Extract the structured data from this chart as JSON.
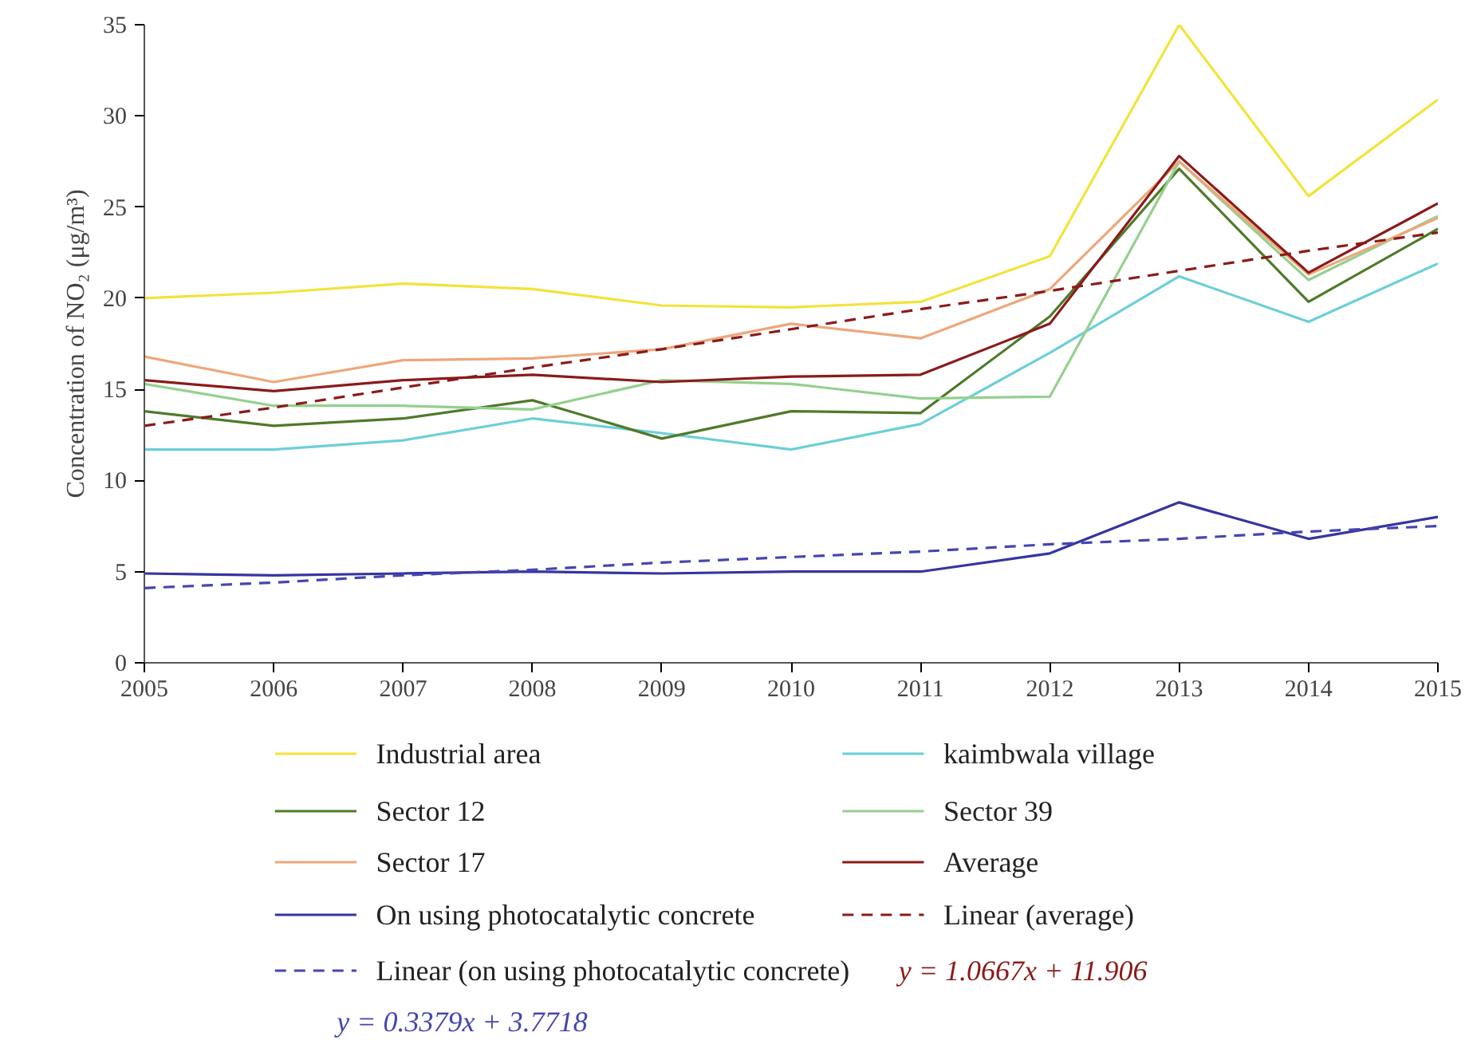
{
  "chart_data": {
    "type": "line",
    "ylabel": "Concentration of NO₂ (μg/m³)",
    "x": [
      2005,
      2006,
      2007,
      2008,
      2009,
      2010,
      2011,
      2012,
      2013,
      2014,
      2015
    ],
    "xlim": [
      2005,
      2015
    ],
    "xticks": [
      2005,
      2006,
      2007,
      2008,
      2009,
      2010,
      2011,
      2012,
      2013,
      2014,
      2015
    ],
    "ylim": [
      0,
      35
    ],
    "yticks": [
      0,
      5,
      10,
      15,
      20,
      25,
      30,
      35
    ],
    "grid": false,
    "legend": "bottom",
    "line_style": "solid",
    "marker": "none",
    "series": [
      {
        "name": "Industrial area",
        "color": "#f2e33a",
        "values": [
          20.0,
          20.3,
          20.8,
          20.5,
          19.6,
          19.5,
          19.8,
          22.3,
          35.0,
          25.6,
          30.9
        ]
      },
      {
        "name": "kaimbwala village",
        "color": "#6ccfd8",
        "values": [
          11.7,
          11.7,
          12.2,
          13.4,
          12.6,
          11.7,
          13.1,
          17.0,
          21.2,
          18.7,
          21.9
        ]
      },
      {
        "name": "Sector 12",
        "color": "#4e7a2a",
        "values": [
          13.8,
          13.0,
          13.4,
          14.4,
          12.3,
          13.8,
          13.7,
          19.0,
          27.1,
          19.8,
          23.8
        ]
      },
      {
        "name": "Sector 39",
        "color": "#94d08e",
        "values": [
          15.3,
          14.1,
          14.1,
          13.9,
          15.5,
          15.3,
          14.5,
          14.6,
          27.5,
          21.0,
          24.5
        ]
      },
      {
        "name": "Sector 17",
        "color": "#eda77c",
        "values": [
          16.8,
          15.4,
          16.6,
          16.7,
          17.2,
          18.6,
          17.8,
          20.5,
          27.5,
          21.3,
          24.4
        ]
      },
      {
        "name": "Average",
        "color": "#8b1a1a",
        "values": [
          15.5,
          14.9,
          15.5,
          15.8,
          15.4,
          15.7,
          15.8,
          18.6,
          27.8,
          21.4,
          25.2
        ]
      },
      {
        "name": "On using photocatalytic concrete",
        "color": "#3535a0",
        "values": [
          4.9,
          4.8,
          4.9,
          5.0,
          4.9,
          5.0,
          5.0,
          6.0,
          8.8,
          6.8,
          8.0
        ]
      },
      {
        "name": "Linear (average)",
        "color": "#8b1a1a",
        "line_style": "dashed",
        "values": [
          13.0,
          14.0,
          15.1,
          16.2,
          17.2,
          18.3,
          19.4,
          20.4,
          21.5,
          22.6,
          23.6
        ]
      },
      {
        "name": "Linear (on using photocatalytic concrete)",
        "color": "#4545b0",
        "line_style": "dashed",
        "values": [
          4.1,
          4.4,
          4.8,
          5.1,
          5.5,
          5.8,
          6.1,
          6.5,
          6.8,
          7.2,
          7.5
        ]
      }
    ],
    "annotations": [
      "y = 1.0667x + 11.906",
      "y = 0.3379x + 3.7718"
    ]
  }
}
